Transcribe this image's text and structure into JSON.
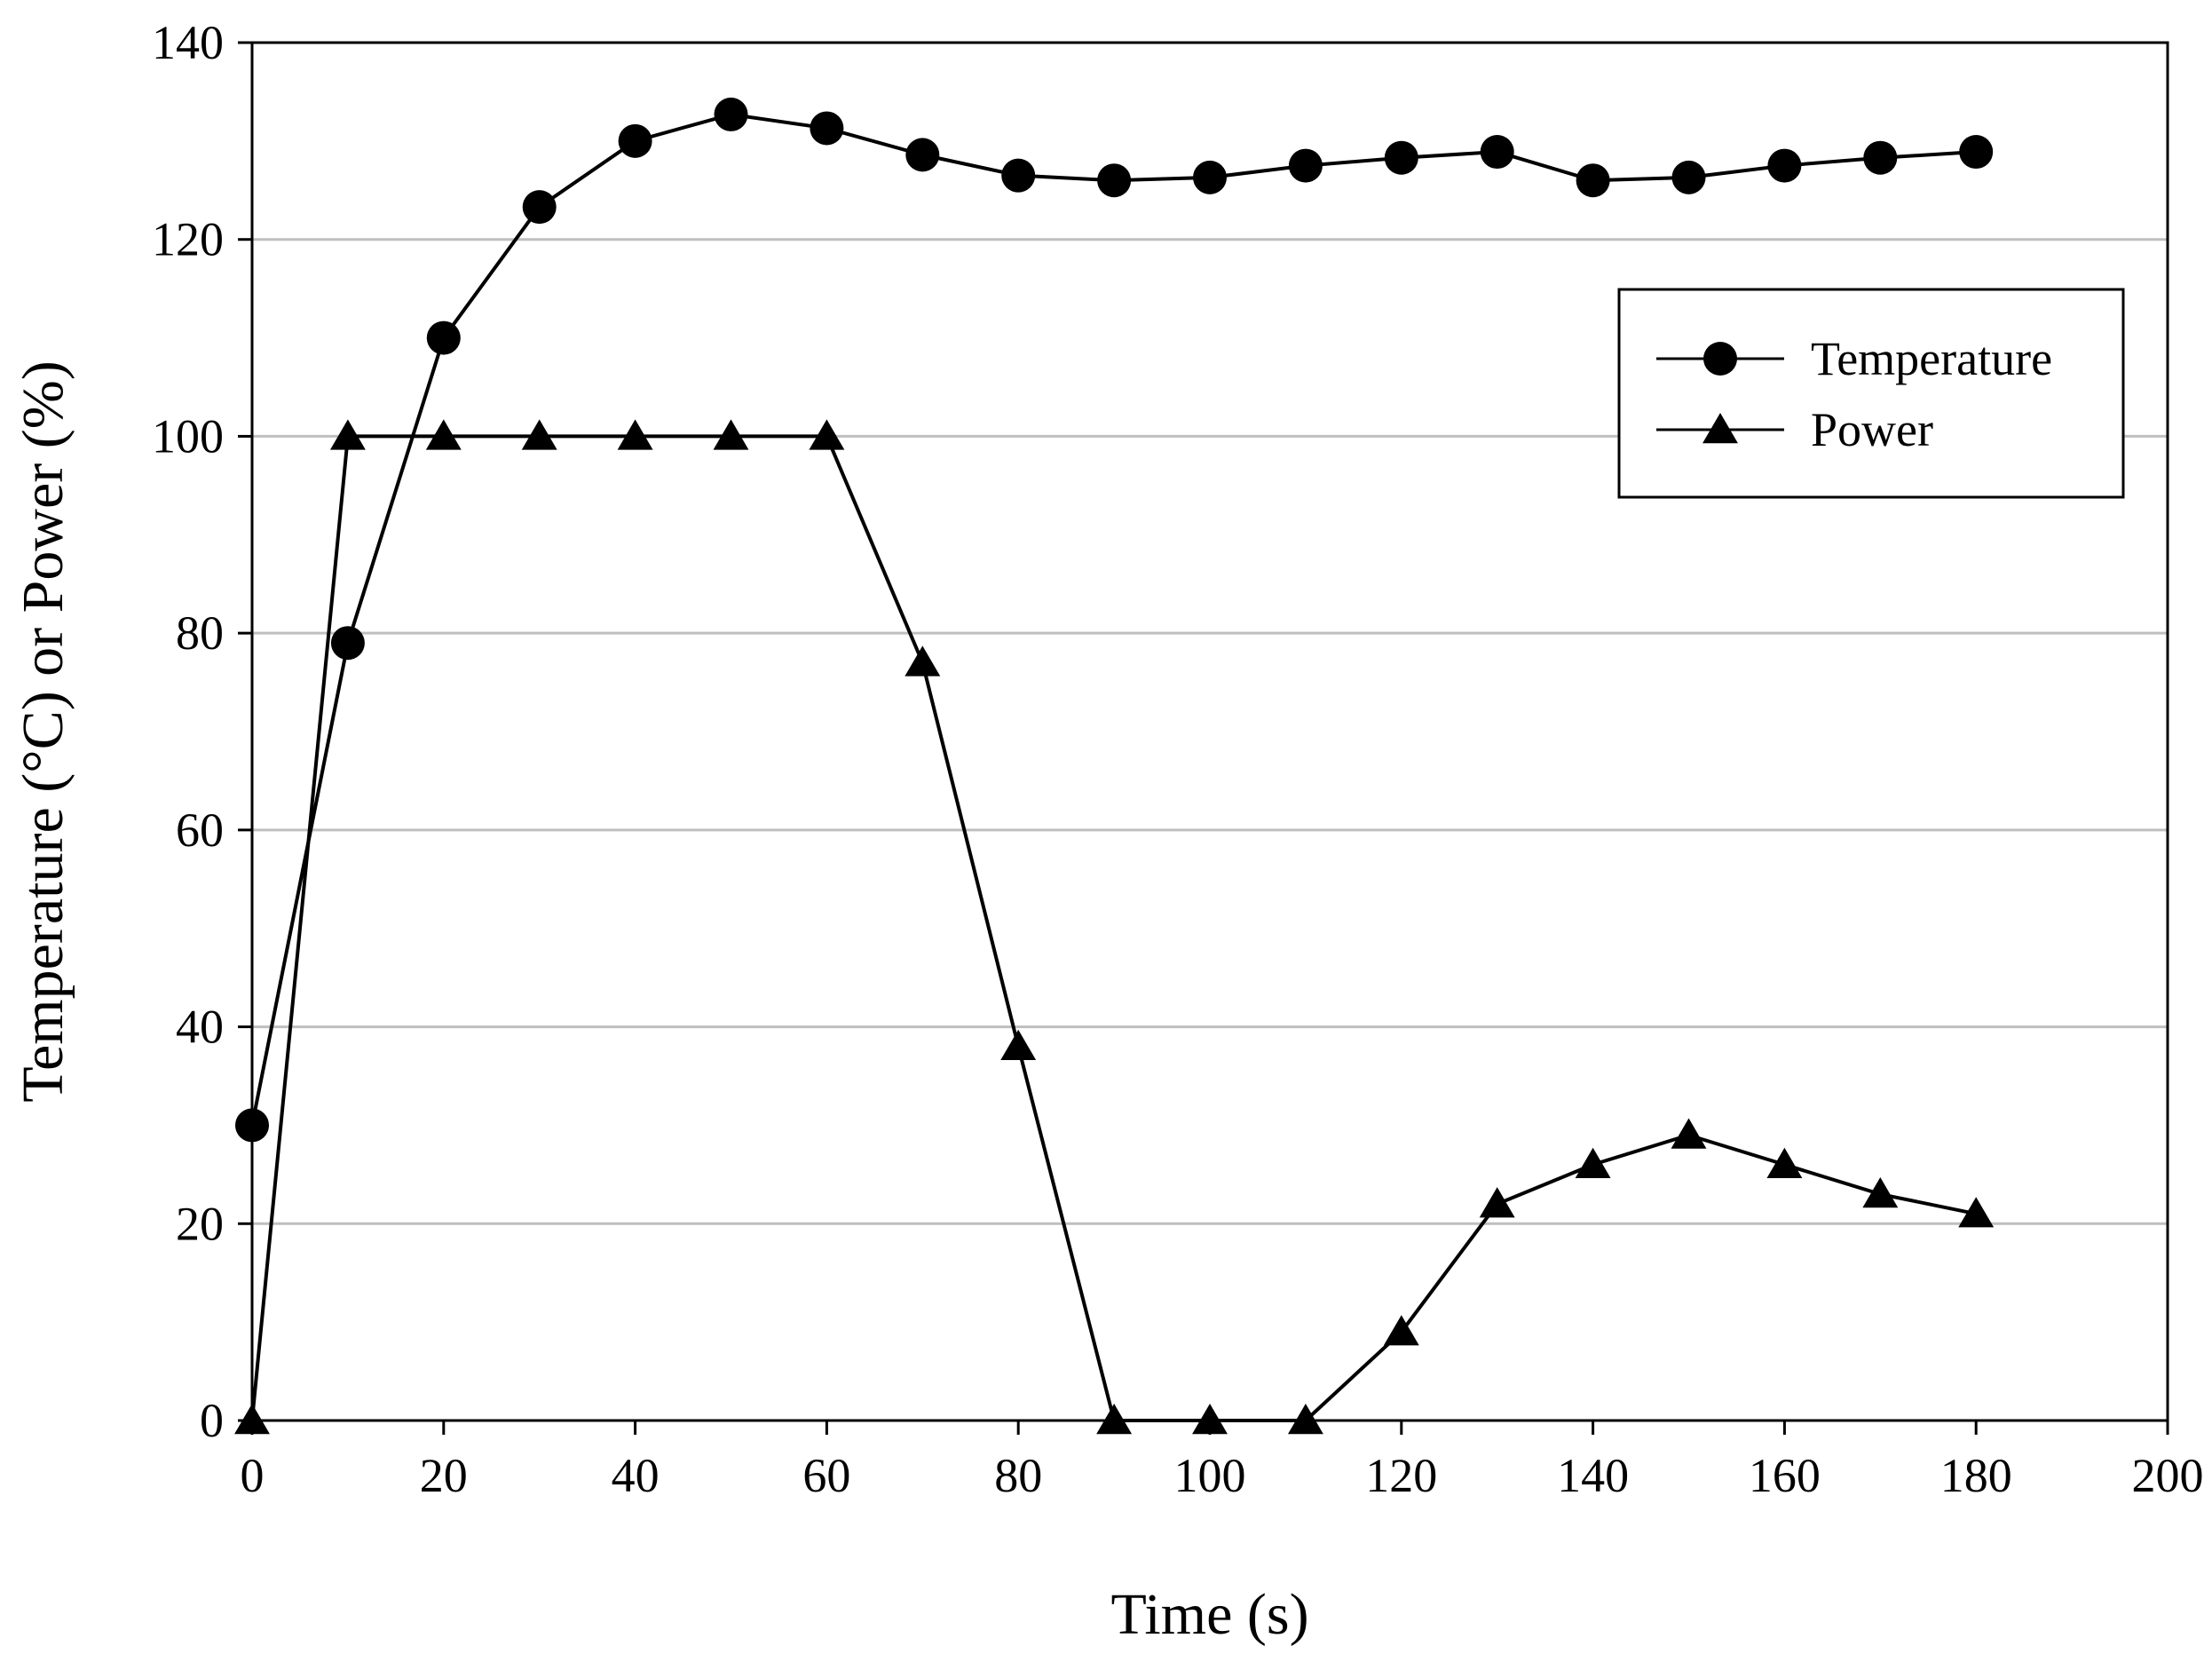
{
  "chart_data": {
    "type": "line",
    "title": "",
    "xlabel": "Time (s)",
    "ylabel": "Temperature (°C) or Power (%)",
    "xlim": [
      0,
      200
    ],
    "ylim": [
      0,
      140
    ],
    "x_ticks": [
      0,
      20,
      40,
      60,
      80,
      100,
      120,
      140,
      160,
      180,
      200
    ],
    "y_ticks": [
      0,
      20,
      40,
      60,
      80,
      100,
      120,
      140
    ],
    "x_tick_labels": [
      "0",
      "20",
      "40",
      "60",
      "80",
      "100",
      "120",
      "140",
      "160",
      "180",
      "200"
    ],
    "y_tick_labels": [
      "0",
      "20",
      "40",
      "60",
      "80",
      "100",
      "120",
      "140"
    ],
    "grid": "horizontal",
    "legend_position": "upper-right",
    "x": [
      0,
      10,
      20,
      30,
      40,
      50,
      60,
      70,
      80,
      90,
      100,
      110,
      120,
      130,
      140,
      150,
      160,
      170,
      180
    ],
    "series": [
      {
        "name": "Temperature",
        "marker": "circle",
        "color": "#000000",
        "values": [
          30,
          79,
          110,
          123.3,
          130,
          132.7,
          131.3,
          128.6,
          126.5,
          126,
          126.3,
          127.5,
          128.3,
          128.9,
          126,
          126.3,
          127.5,
          128.3,
          128.9
        ]
      },
      {
        "name": "Power",
        "marker": "triangle",
        "color": "#000000",
        "values": [
          0,
          100,
          100,
          100,
          100,
          100,
          100,
          77,
          38,
          0,
          0,
          0,
          9,
          22,
          26,
          29,
          26,
          23,
          21
        ]
      }
    ]
  },
  "colors": {
    "grid": "#bfbfbf",
    "axis": "#000000",
    "background": "#ffffff"
  }
}
